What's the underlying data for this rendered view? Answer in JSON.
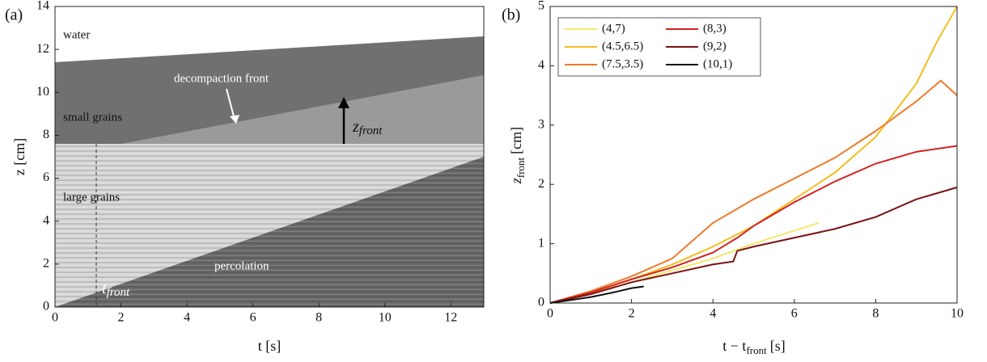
{
  "chart_data": [
    {
      "type": "image",
      "panel_label": "(a)",
      "xlabel": "t [s]",
      "ylabel": "z [cm]",
      "xlim": [
        0,
        13
      ],
      "xticks": [
        0,
        2,
        4,
        6,
        8,
        10,
        12
      ],
      "ylim": [
        0,
        14
      ],
      "yticks": [
        0,
        2,
        4,
        6,
        8,
        10,
        12,
        14
      ],
      "annotations": {
        "water": "water",
        "decompaction": "decompaction front",
        "small": "small grains",
        "large": "large grains",
        "percolation": "percolation",
        "z_front": {
          "symbol": "z",
          "subscript": "front"
        },
        "t_front": {
          "symbol": "t",
          "subscript": "front"
        }
      }
    },
    {
      "type": "line",
      "panel_label": "(b)",
      "xlabel": {
        "text": "t − t",
        "subscript": "front",
        "unit": "[s]"
      },
      "ylabel": {
        "symbol": "z",
        "subscript": "front",
        "unit": "[cm]"
      },
      "xlim": [
        0,
        10
      ],
      "xticks": [
        0,
        2,
        4,
        6,
        8,
        10
      ],
      "ylim": [
        0,
        5
      ],
      "yticks": [
        0,
        1,
        2,
        3,
        4,
        5
      ],
      "legend": "upper left",
      "series": [
        {
          "name": "(4,7)",
          "color": "#f5e66a",
          "x": [
            0,
            1,
            2,
            3,
            4,
            5,
            6,
            6.6
          ],
          "values": [
            0,
            0.15,
            0.35,
            0.55,
            0.75,
            1.0,
            1.22,
            1.35
          ]
        },
        {
          "name": "(4.5,6.5)",
          "color": "#f2be1e",
          "x": [
            0,
            1,
            2,
            3,
            4,
            5,
            6,
            7,
            8,
            9,
            9.5,
            10
          ],
          "values": [
            0,
            0.17,
            0.4,
            0.65,
            0.95,
            1.3,
            1.75,
            2.2,
            2.8,
            3.7,
            4.4,
            5
          ]
        },
        {
          "name": "(7.5,3.5)",
          "color": "#ee7a2a",
          "x": [
            0,
            1,
            2,
            3,
            3.5,
            4,
            5,
            6,
            7,
            8,
            9,
            9.6,
            10
          ],
          "values": [
            0,
            0.2,
            0.45,
            0.75,
            1.05,
            1.35,
            1.75,
            2.1,
            2.45,
            2.9,
            3.4,
            3.75,
            3.5
          ]
        },
        {
          "name": "(8,3)",
          "color": "#d42222",
          "x": [
            0,
            1,
            2,
            3,
            4,
            4.6,
            5,
            6,
            7,
            8,
            9,
            10
          ],
          "values": [
            0,
            0.18,
            0.4,
            0.6,
            0.85,
            1.1,
            1.3,
            1.7,
            2.05,
            2.35,
            2.55,
            2.65
          ]
        },
        {
          "name": "(9,2)",
          "color": "#7a1212",
          "x": [
            0,
            1,
            2,
            3,
            4,
            4.5,
            4.6,
            5,
            6,
            7,
            8,
            9,
            10
          ],
          "values": [
            0,
            0.15,
            0.35,
            0.5,
            0.65,
            0.7,
            0.88,
            0.95,
            1.1,
            1.25,
            1.45,
            1.75,
            1.95
          ]
        },
        {
          "name": "(10,1)",
          "color": "#111111",
          "x": [
            0,
            0.5,
            1,
            1.5,
            2,
            2.3
          ],
          "values": [
            0,
            0.05,
            0.1,
            0.17,
            0.25,
            0.28
          ]
        }
      ]
    }
  ]
}
